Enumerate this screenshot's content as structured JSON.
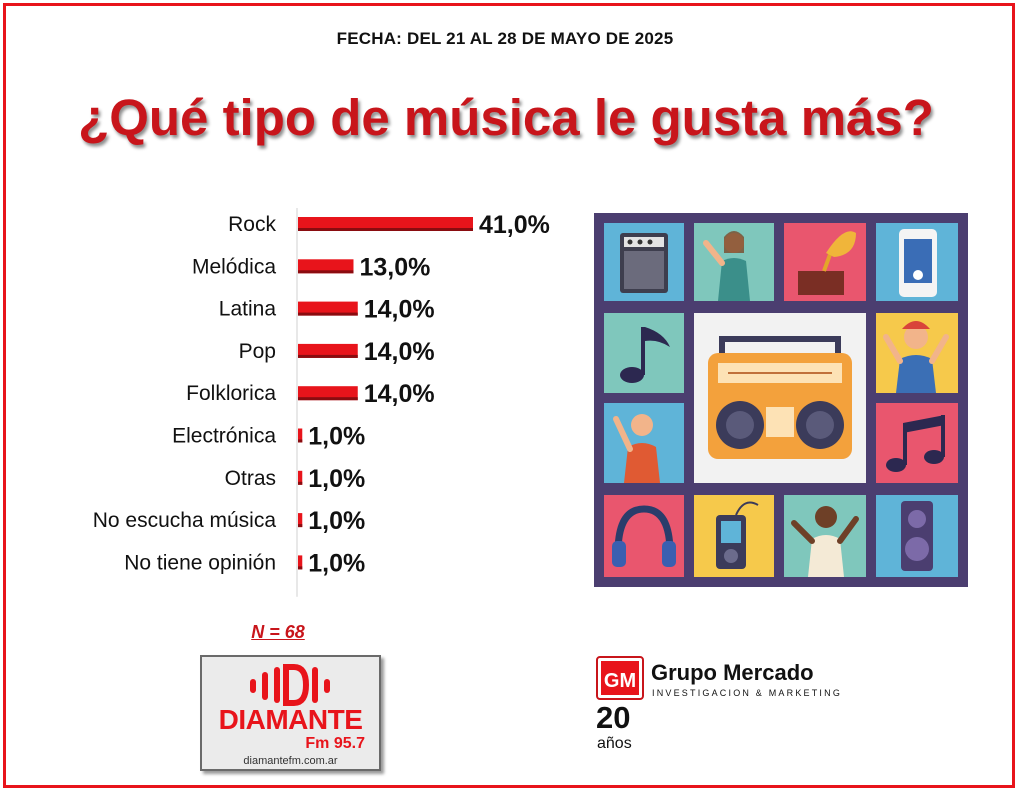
{
  "header": {
    "date": "FECHA: DEL 21 AL 28 DE MAYO DE 2025",
    "title": "¿Qué tipo de música le gusta más?"
  },
  "chart_data": {
    "type": "bar",
    "orientation": "horizontal",
    "categories": [
      "Rock",
      "Melódica",
      "Latina",
      "Pop",
      "Folklorica",
      "Electrónica",
      "Otras",
      "No escucha música",
      "No tiene opinión"
    ],
    "values": [
      41.0,
      13.0,
      14.0,
      14.0,
      14.0,
      1.0,
      1.0,
      1.0,
      1.0
    ],
    "data_labels": [
      "41,0%",
      "13,0%",
      "14,0%",
      "14,0%",
      "14,0%",
      "1,0%",
      "1,0%",
      "1,0%",
      "1,0%"
    ],
    "xlim": [
      0,
      50
    ],
    "grid": false,
    "bar_color": "#e8141b"
  },
  "sample": "N = 68",
  "logos": {
    "diamante": {
      "name": "DIAMANTE",
      "freq": "Fm 95.7",
      "url": "diamantefm.com.ar"
    },
    "grupo_mercado": {
      "mark": "GM",
      "name": "Grupo Mercado",
      "tagline": "INVESTIGACION & MARKETING",
      "years_number": "20",
      "years_word": "años"
    }
  },
  "colors": {
    "accent": "#e8141b",
    "title": "#c8151b"
  },
  "illustration": {
    "icons": [
      "amplifier-icon",
      "woman-dancing-icon",
      "gramophone-icon",
      "phone-player-icon",
      "music-note-icon",
      "boombox-icon",
      "man-cheering-icon",
      "man-pointing-icon",
      "double-note-icon",
      "headphones-icon",
      "mp3-player-icon",
      "man-dancing-icon",
      "speaker-icon"
    ]
  }
}
